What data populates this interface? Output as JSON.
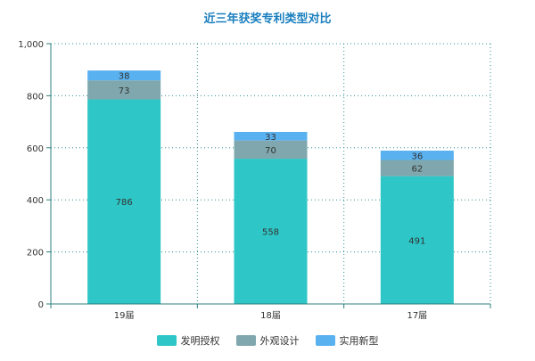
{
  "chart_data": {
    "type": "bar",
    "stacked": true,
    "title": "近三年获奖专利类型对比",
    "categories": [
      "19届",
      "18届",
      "17届"
    ],
    "series": [
      {
        "name": "发明授权",
        "values": [
          786,
          558,
          491
        ],
        "color": "#2ec6c6"
      },
      {
        "name": "外观设计",
        "values": [
          73,
          70,
          62
        ],
        "color": "#7fa7ad"
      },
      {
        "name": "实用新型",
        "values": [
          38,
          33,
          36
        ],
        "color": "#5ab1ef"
      }
    ],
    "ylim": [
      0,
      1000
    ],
    "yticks": [
      "0",
      "200",
      "400",
      "600",
      "800",
      "1,000"
    ],
    "ytick_values": [
      0,
      200,
      400,
      600,
      800,
      1000
    ],
    "grid": true,
    "legend_position": "bottom",
    "title_color": "#1a7fbf",
    "axis_color": "#2f7f7f",
    "grid_color": "#2f8f8f"
  }
}
